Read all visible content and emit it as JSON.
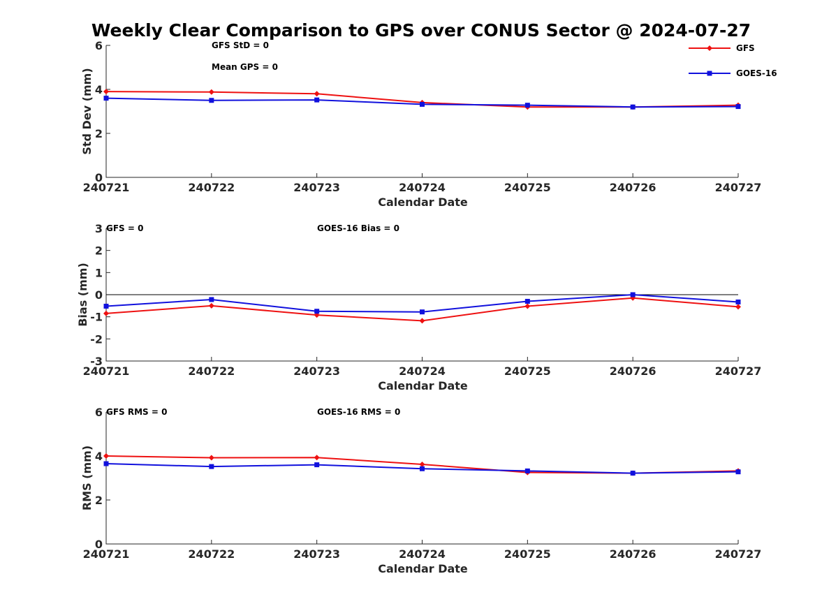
{
  "title": "Weekly Clear Comparison to GPS over CONUS Sector @ 2024-07-27",
  "colors": {
    "GFS": "#ee1111",
    "GOES-16": "#1111dd"
  },
  "chart_data": [
    {
      "type": "line",
      "ylabel": "Std Dev (mm)",
      "xlabel": "Calendar Date",
      "categories": [
        "240721",
        "240722",
        "240723",
        "240724",
        "240725",
        "240726",
        "240727"
      ],
      "ylim": [
        0,
        6
      ],
      "yticks": [
        0,
        2,
        4,
        6
      ],
      "annotations": [
        "GFS StD = 0",
        "Mean GPS = 0"
      ],
      "legend": {
        "placement": "top-right",
        "entries": [
          "GFS",
          "GOES-16"
        ]
      },
      "zero_line": false,
      "series": [
        {
          "name": "GFS",
          "marker": "diamond",
          "values": [
            3.9,
            3.88,
            3.8,
            3.4,
            3.2,
            3.2,
            3.28
          ]
        },
        {
          "name": "GOES-16",
          "marker": "square",
          "values": [
            3.6,
            3.5,
            3.52,
            3.32,
            3.28,
            3.2,
            3.22
          ]
        }
      ]
    },
    {
      "type": "line",
      "ylabel": "Bias (mm)",
      "xlabel": "Calendar Date",
      "categories": [
        "240721",
        "240722",
        "240723",
        "240724",
        "240725",
        "240726",
        "240727"
      ],
      "ylim": [
        -3,
        3
      ],
      "yticks": [
        -3,
        -2,
        -1,
        0,
        1,
        2,
        3
      ],
      "annotations": [
        "GFS = 0",
        "GOES-16 Bias  = 0"
      ],
      "zero_line": true,
      "series": [
        {
          "name": "GFS",
          "marker": "diamond",
          "values": [
            -0.85,
            -0.5,
            -0.92,
            -1.18,
            -0.52,
            -0.15,
            -0.55
          ]
        },
        {
          "name": "GOES-16",
          "marker": "square",
          "values": [
            -0.52,
            -0.22,
            -0.75,
            -0.78,
            -0.3,
            0.0,
            -0.33
          ]
        }
      ]
    },
    {
      "type": "line",
      "ylabel": "RMS (mm)",
      "xlabel": "Calendar Date",
      "categories": [
        "240721",
        "240722",
        "240723",
        "240724",
        "240725",
        "240726",
        "240727"
      ],
      "ylim": [
        0,
        6
      ],
      "yticks": [
        0,
        2,
        4,
        6
      ],
      "annotations": [
        "GFS RMS = 0",
        "GOES-16 RMS = 0"
      ],
      "zero_line": false,
      "series": [
        {
          "name": "GFS",
          "marker": "diamond",
          "values": [
            4.0,
            3.92,
            3.93,
            3.62,
            3.25,
            3.22,
            3.32
          ]
        },
        {
          "name": "GOES-16",
          "marker": "square",
          "values": [
            3.65,
            3.52,
            3.6,
            3.42,
            3.32,
            3.22,
            3.28
          ]
        }
      ]
    }
  ]
}
